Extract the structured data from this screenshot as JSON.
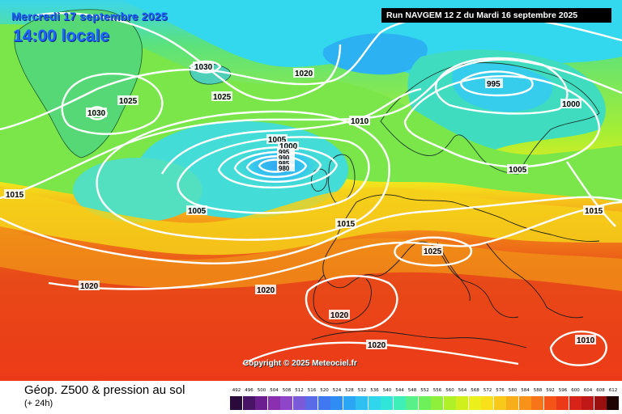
{
  "header": {
    "date": "Mercredi 17 septembre 2025",
    "local_time": "14:00 locale",
    "run": "Run NAVGEM 12 Z du Mardi 16 septembre 2025"
  },
  "copyright": "Copyright © 2025 Meteociel.fr",
  "footer": {
    "title": "Géop. Z500 & pression au sol",
    "subtitle": "(+ 24h)"
  },
  "pressure_labels": [
    {
      "value": "1030",
      "region": "greenland-north"
    },
    {
      "value": "1030",
      "region": "greenland-south"
    },
    {
      "value": "1025",
      "region": "greenland"
    },
    {
      "value": "1025",
      "region": "north-atlantic"
    },
    {
      "value": "1020",
      "region": "norwegian-sea"
    },
    {
      "value": "1010",
      "region": "north-sea"
    },
    {
      "value": "995",
      "region": "scandinavia"
    },
    {
      "value": "1000",
      "region": "finland"
    },
    {
      "value": "1005",
      "region": "baltic"
    },
    {
      "value": "1015",
      "region": "west-atlantic"
    },
    {
      "value": "1005",
      "region": "low-rim"
    },
    {
      "value": "1000",
      "region": "low-core"
    },
    {
      "value": "995",
      "region": "low-core"
    },
    {
      "value": "990",
      "region": "low-core"
    },
    {
      "value": "985",
      "region": "low-core"
    },
    {
      "value": "980",
      "region": "low-core"
    },
    {
      "value": "1005",
      "region": "mid-atlantic"
    },
    {
      "value": "1015",
      "region": "france"
    },
    {
      "value": "1015",
      "region": "eastern-europe"
    },
    {
      "value": "1025",
      "region": "alps"
    },
    {
      "value": "1020",
      "region": "subtropical-atlantic"
    },
    {
      "value": "1020",
      "region": "azores"
    },
    {
      "value": "1020",
      "region": "iberia"
    },
    {
      "value": "1020",
      "region": "north-africa"
    },
    {
      "value": "1010",
      "region": "eastern-mediterranean"
    }
  ],
  "legend": {
    "values": [
      "492",
      "496",
      "500",
      "504",
      "508",
      "512",
      "516",
      "520",
      "524",
      "528",
      "532",
      "536",
      "540",
      "544",
      "548",
      "552",
      "556",
      "560",
      "564",
      "568",
      "572",
      "576",
      "580",
      "584",
      "588",
      "592",
      "596",
      "600",
      "604",
      "608",
      "612"
    ],
    "colors": [
      "#2a0a3a",
      "#4a1466",
      "#6b1f8e",
      "#8a2fb0",
      "#8f45c8",
      "#7a5ad8",
      "#5a6be8",
      "#3f78f0",
      "#2f8cf5",
      "#2aa6f5",
      "#2ec0f2",
      "#30d6ec",
      "#30e6d8",
      "#3ef0b8",
      "#57f089",
      "#6ef05a",
      "#8ef03a",
      "#b0f028",
      "#d0f01e",
      "#ecf01a",
      "#f8e01a",
      "#f8c81a",
      "#f8ae1a",
      "#f89218",
      "#f87418",
      "#f45418",
      "#ea3a18",
      "#d82418",
      "#c01818",
      "#9a1010",
      "#200404"
    ]
  }
}
